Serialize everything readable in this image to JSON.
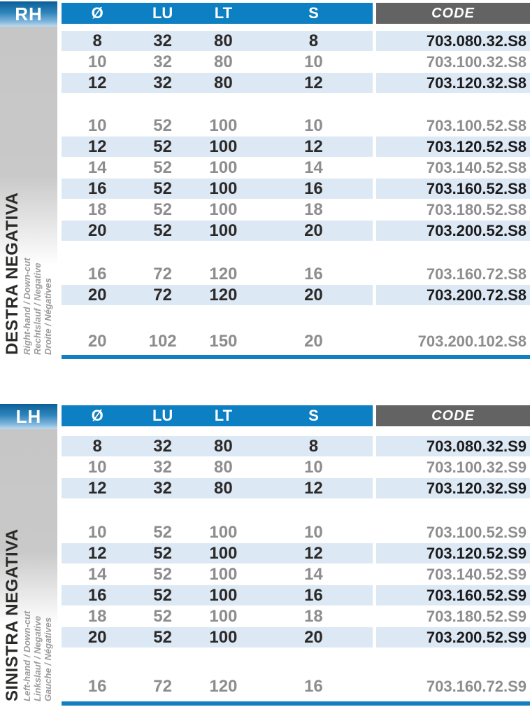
{
  "colors": {
    "header_blue": "#0d7fc3",
    "code_header_gray": "#636363",
    "row_highlight_blue": "#dde8f5",
    "underline_blue": "#137fc0",
    "text_dark": "#2b2a28",
    "text_gray": "#8d8d8d",
    "badge_top": "#0b5f98",
    "badge_bottom": "#bedbef",
    "strip_gray": "#c6c6c6"
  },
  "tables": [
    {
      "id": "rh",
      "badge": "RH",
      "side_title": "DESTRA NEGATIVA",
      "side_subtitles": [
        "Right-hand / Down-cut",
        "Rechtslauf / Negative",
        "Droite / Négatives"
      ],
      "columns": [
        "Ø",
        "LU",
        "LT",
        "S"
      ],
      "code_header": "CODE",
      "groups": [
        {
          "rows": [
            {
              "values": [
                "8",
                "32",
                "80",
                "8"
              ],
              "code": "703.080.32.S8",
              "highlight": true
            },
            {
              "values": [
                "10",
                "32",
                "80",
                "10"
              ],
              "code": "703.100.32.S8",
              "highlight": false
            },
            {
              "values": [
                "12",
                "32",
                "80",
                "12"
              ],
              "code": "703.120.32.S8",
              "highlight": true
            }
          ]
        },
        {
          "rows": [
            {
              "values": [
                "10",
                "52",
                "100",
                "10"
              ],
              "code": "703.100.52.S8",
              "highlight": false
            },
            {
              "values": [
                "12",
                "52",
                "100",
                "12"
              ],
              "code": "703.120.52.S8",
              "highlight": true
            },
            {
              "values": [
                "14",
                "52",
                "100",
                "14"
              ],
              "code": "703.140.52.S8",
              "highlight": false
            },
            {
              "values": [
                "16",
                "52",
                "100",
                "16"
              ],
              "code": "703.160.52.S8",
              "highlight": true
            },
            {
              "values": [
                "18",
                "52",
                "100",
                "18"
              ],
              "code": "703.180.52.S8",
              "highlight": false
            },
            {
              "values": [
                "20",
                "52",
                "100",
                "20"
              ],
              "code": "703.200.52.S8",
              "highlight": true
            }
          ]
        },
        {
          "rows": [
            {
              "values": [
                "16",
                "72",
                "120",
                "16"
              ],
              "code": "703.160.72.S8",
              "highlight": false
            },
            {
              "values": [
                "20",
                "72",
                "120",
                "20"
              ],
              "code": "703.200.72.S8",
              "highlight": true
            }
          ]
        },
        {
          "rows": [
            {
              "values": [
                "20",
                "102",
                "150",
                "20"
              ],
              "code": "703.200.102.S8",
              "highlight": false
            }
          ]
        }
      ]
    },
    {
      "id": "lh",
      "badge": "LH",
      "side_title": "SINISTRA NEGATIVA",
      "side_subtitles": [
        "Left-hand / Down-cut",
        "Linkslauf / Negative",
        "Gauche / Négatives"
      ],
      "columns": [
        "Ø",
        "LU",
        "LT",
        "S"
      ],
      "code_header": "CODE",
      "groups": [
        {
          "rows": [
            {
              "values": [
                "8",
                "32",
                "80",
                "8"
              ],
              "code": "703.080.32.S9",
              "highlight": true
            },
            {
              "values": [
                "10",
                "32",
                "80",
                "10"
              ],
              "code": "703.100.32.S9",
              "highlight": false
            },
            {
              "values": [
                "12",
                "32",
                "80",
                "12"
              ],
              "code": "703.120.32.S9",
              "highlight": true
            }
          ]
        },
        {
          "rows": [
            {
              "values": [
                "10",
                "52",
                "100",
                "10"
              ],
              "code": "703.100.52.S9",
              "highlight": false
            },
            {
              "values": [
                "12",
                "52",
                "100",
                "12"
              ],
              "code": "703.120.52.S9",
              "highlight": true
            },
            {
              "values": [
                "14",
                "52",
                "100",
                "14"
              ],
              "code": "703.140.52.S9",
              "highlight": false
            },
            {
              "values": [
                "16",
                "52",
                "100",
                "16"
              ],
              "code": "703.160.52.S9",
              "highlight": true
            },
            {
              "values": [
                "18",
                "52",
                "100",
                "18"
              ],
              "code": "703.180.52.S9",
              "highlight": false
            },
            {
              "values": [
                "20",
                "52",
                "100",
                "20"
              ],
              "code": "703.200.52.S9",
              "highlight": true
            }
          ]
        },
        {
          "rows": [
            {
              "values": [
                "16",
                "72",
                "120",
                "16"
              ],
              "code": "703.160.72.S9",
              "highlight": false
            }
          ]
        }
      ]
    }
  ]
}
